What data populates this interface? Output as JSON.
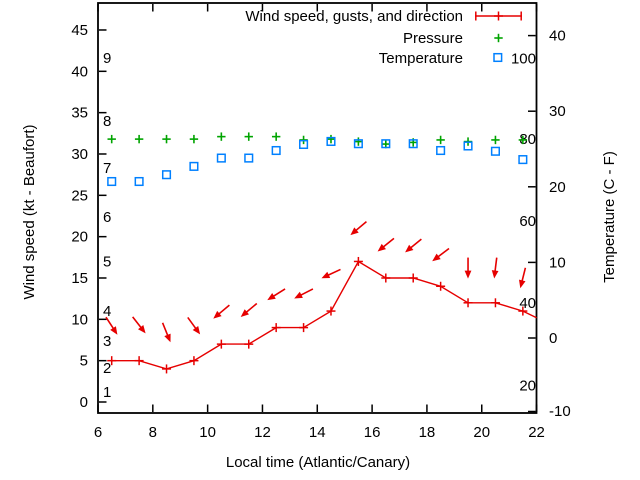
{
  "chart_data": {
    "type": "line",
    "title": "",
    "xlabel": "Local time (Atlantic/Canary)",
    "ylabel_left": "Wind speed (kt - Beaufort)",
    "ylabel_right": "Temperature (C - F)",
    "xlim": [
      6,
      22
    ],
    "ylim_left_kt": [
      -1.3,
      48.3
    ],
    "ylim_right_c": [
      -10.2,
      44.3
    ],
    "grid": false,
    "legend_position": "top-right-inside",
    "x_ticks": [
      6,
      8,
      10,
      12,
      14,
      16,
      18,
      20,
      22
    ],
    "y_ticks_left_kt": [
      0,
      5,
      10,
      15,
      20,
      25,
      30,
      35,
      40,
      45
    ],
    "y_ticks_right_c": [
      -10,
      0,
      10,
      20,
      30,
      40
    ],
    "beaufort_labels": [
      {
        "text": "1",
        "kt": 1.2
      },
      {
        "text": "2",
        "kt": 4.1
      },
      {
        "text": "3",
        "kt": 7.4
      },
      {
        "text": "4",
        "kt": 11.0
      },
      {
        "text": "5",
        "kt": 17.0
      },
      {
        "text": "6",
        "kt": 22.4
      },
      {
        "text": "7",
        "kt": 28.3
      },
      {
        "text": "8",
        "kt": 34.0
      },
      {
        "text": "9",
        "kt": 41.6
      }
    ],
    "fahrenheit_labels": [
      {
        "text": "20",
        "c": -6.3
      },
      {
        "text": "40",
        "c": 4.6
      },
      {
        "text": "60",
        "c": 15.5
      },
      {
        "text": "80",
        "c": 26.3
      },
      {
        "text": "100",
        "c": 37.0
      }
    ],
    "x_hours": [
      6.5,
      7.5,
      8.5,
      9.5,
      10.5,
      11.5,
      12.5,
      13.5,
      14.5,
      15.5,
      16.5,
      17.5,
      18.5,
      19.5,
      20.5,
      21.5
    ],
    "series": [
      {
        "name": "Wind speed, gusts, and direction",
        "axis": "left",
        "marker": "plus-line",
        "color": "#e60000",
        "wind_kt": [
          5,
          5,
          4,
          5,
          7,
          7,
          9,
          9,
          11,
          17,
          15,
          15,
          14,
          12,
          12,
          11
        ],
        "line_end": {
          "x": 22,
          "kt": 10.2
        },
        "gusts_kt": [
          9.2,
          9.3,
          8.4,
          9.2,
          10.9,
          11.1,
          13.0,
          13.1,
          15.5,
          21.0,
          19.0,
          18.9,
          17.8,
          16.2,
          16.2,
          15.0
        ],
        "gust_arrow_angles_deg": [
          57,
          52,
          68,
          54,
          140,
          140,
          148,
          153,
          155,
          140,
          141,
          141,
          143,
          90,
          97,
          104
        ]
      },
      {
        "name": "Pressure",
        "axis": "unlabeled",
        "marker": "plus",
        "color": "#00a400",
        "plotted_kt": [
          31.8,
          31.8,
          31.8,
          31.8,
          32.1,
          32.1,
          32.1,
          31.7,
          31.8,
          31.5,
          31.2,
          31.4,
          31.7,
          31.5,
          31.7,
          31.7
        ]
      },
      {
        "name": "Temperature",
        "axis": "right",
        "marker": "open-square",
        "color": "#0080ff",
        "temperature_c": [
          20.7,
          20.7,
          21.6,
          22.7,
          23.8,
          23.8,
          24.8,
          25.6,
          26.0,
          25.7,
          25.7,
          25.7,
          24.8,
          25.4,
          24.7,
          23.6
        ]
      }
    ],
    "legend": [
      {
        "label": "Wind speed, gusts, and direction",
        "marker": "errorbar-sample",
        "color": "#e60000"
      },
      {
        "label": "Pressure",
        "marker": "plus",
        "color": "#00a400"
      },
      {
        "label": "Temperature",
        "marker": "open-square",
        "color": "#0080ff"
      }
    ],
    "axis_color": "#000000"
  }
}
